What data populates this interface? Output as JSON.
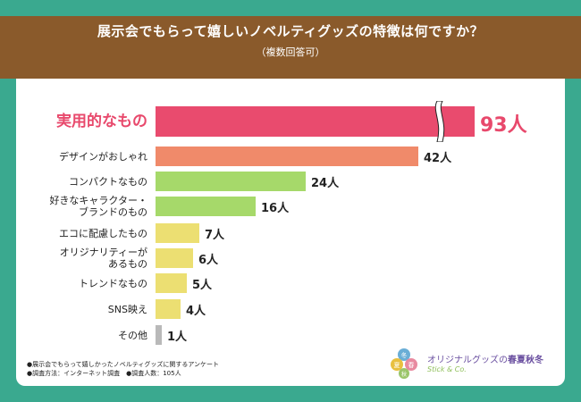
{
  "title": "展示会でもらって嬉しいノベルティグッズの特徴は何ですか？",
  "subtitle": "（複数回答可）",
  "chart_data": {
    "type": "bar",
    "orientation": "horizontal",
    "categories": [
      "実用的なもの",
      "デザインがおしゃれ",
      "コンパクトなもの",
      "好きなキャラクター・ブランドのもの",
      "エコに配慮したもの",
      "オリジナリティーがあるもの",
      "トレンドなもの",
      "SNS映え",
      "その他"
    ],
    "values": [
      93,
      42,
      24,
      16,
      7,
      6,
      5,
      4,
      1
    ],
    "value_labels": [
      "93人",
      "42人",
      "24人",
      "16人",
      "7人",
      "6人",
      "5人",
      "4人",
      "1人"
    ],
    "unit": "人",
    "axis_break_on_first_bar": true,
    "colors": [
      "#e94b6e",
      "#f08a6a",
      "#a6d96a",
      "#a6d96a",
      "#ecdf72",
      "#ecdf72",
      "#ecdf72",
      "#ecdf72",
      "#b9b9b9"
    ]
  },
  "notes": [
    "●展示会でもらって嬉しかったノベルティグッズに関するアンケート",
    "●調査方法：インターネット調査　●調査人数：105人"
  ],
  "logo": {
    "text_prefix": "オリジナルグッズ",
    "text_mid": "の",
    "text_seasons": "春夏秋冬",
    "sub": "Stick & Co.",
    "badge_chars": [
      "冬",
      "夏",
      "春",
      "秋"
    ],
    "colors": [
      "#6aaed6",
      "#e8c040",
      "#e88aa0",
      "#9bc56a"
    ]
  }
}
